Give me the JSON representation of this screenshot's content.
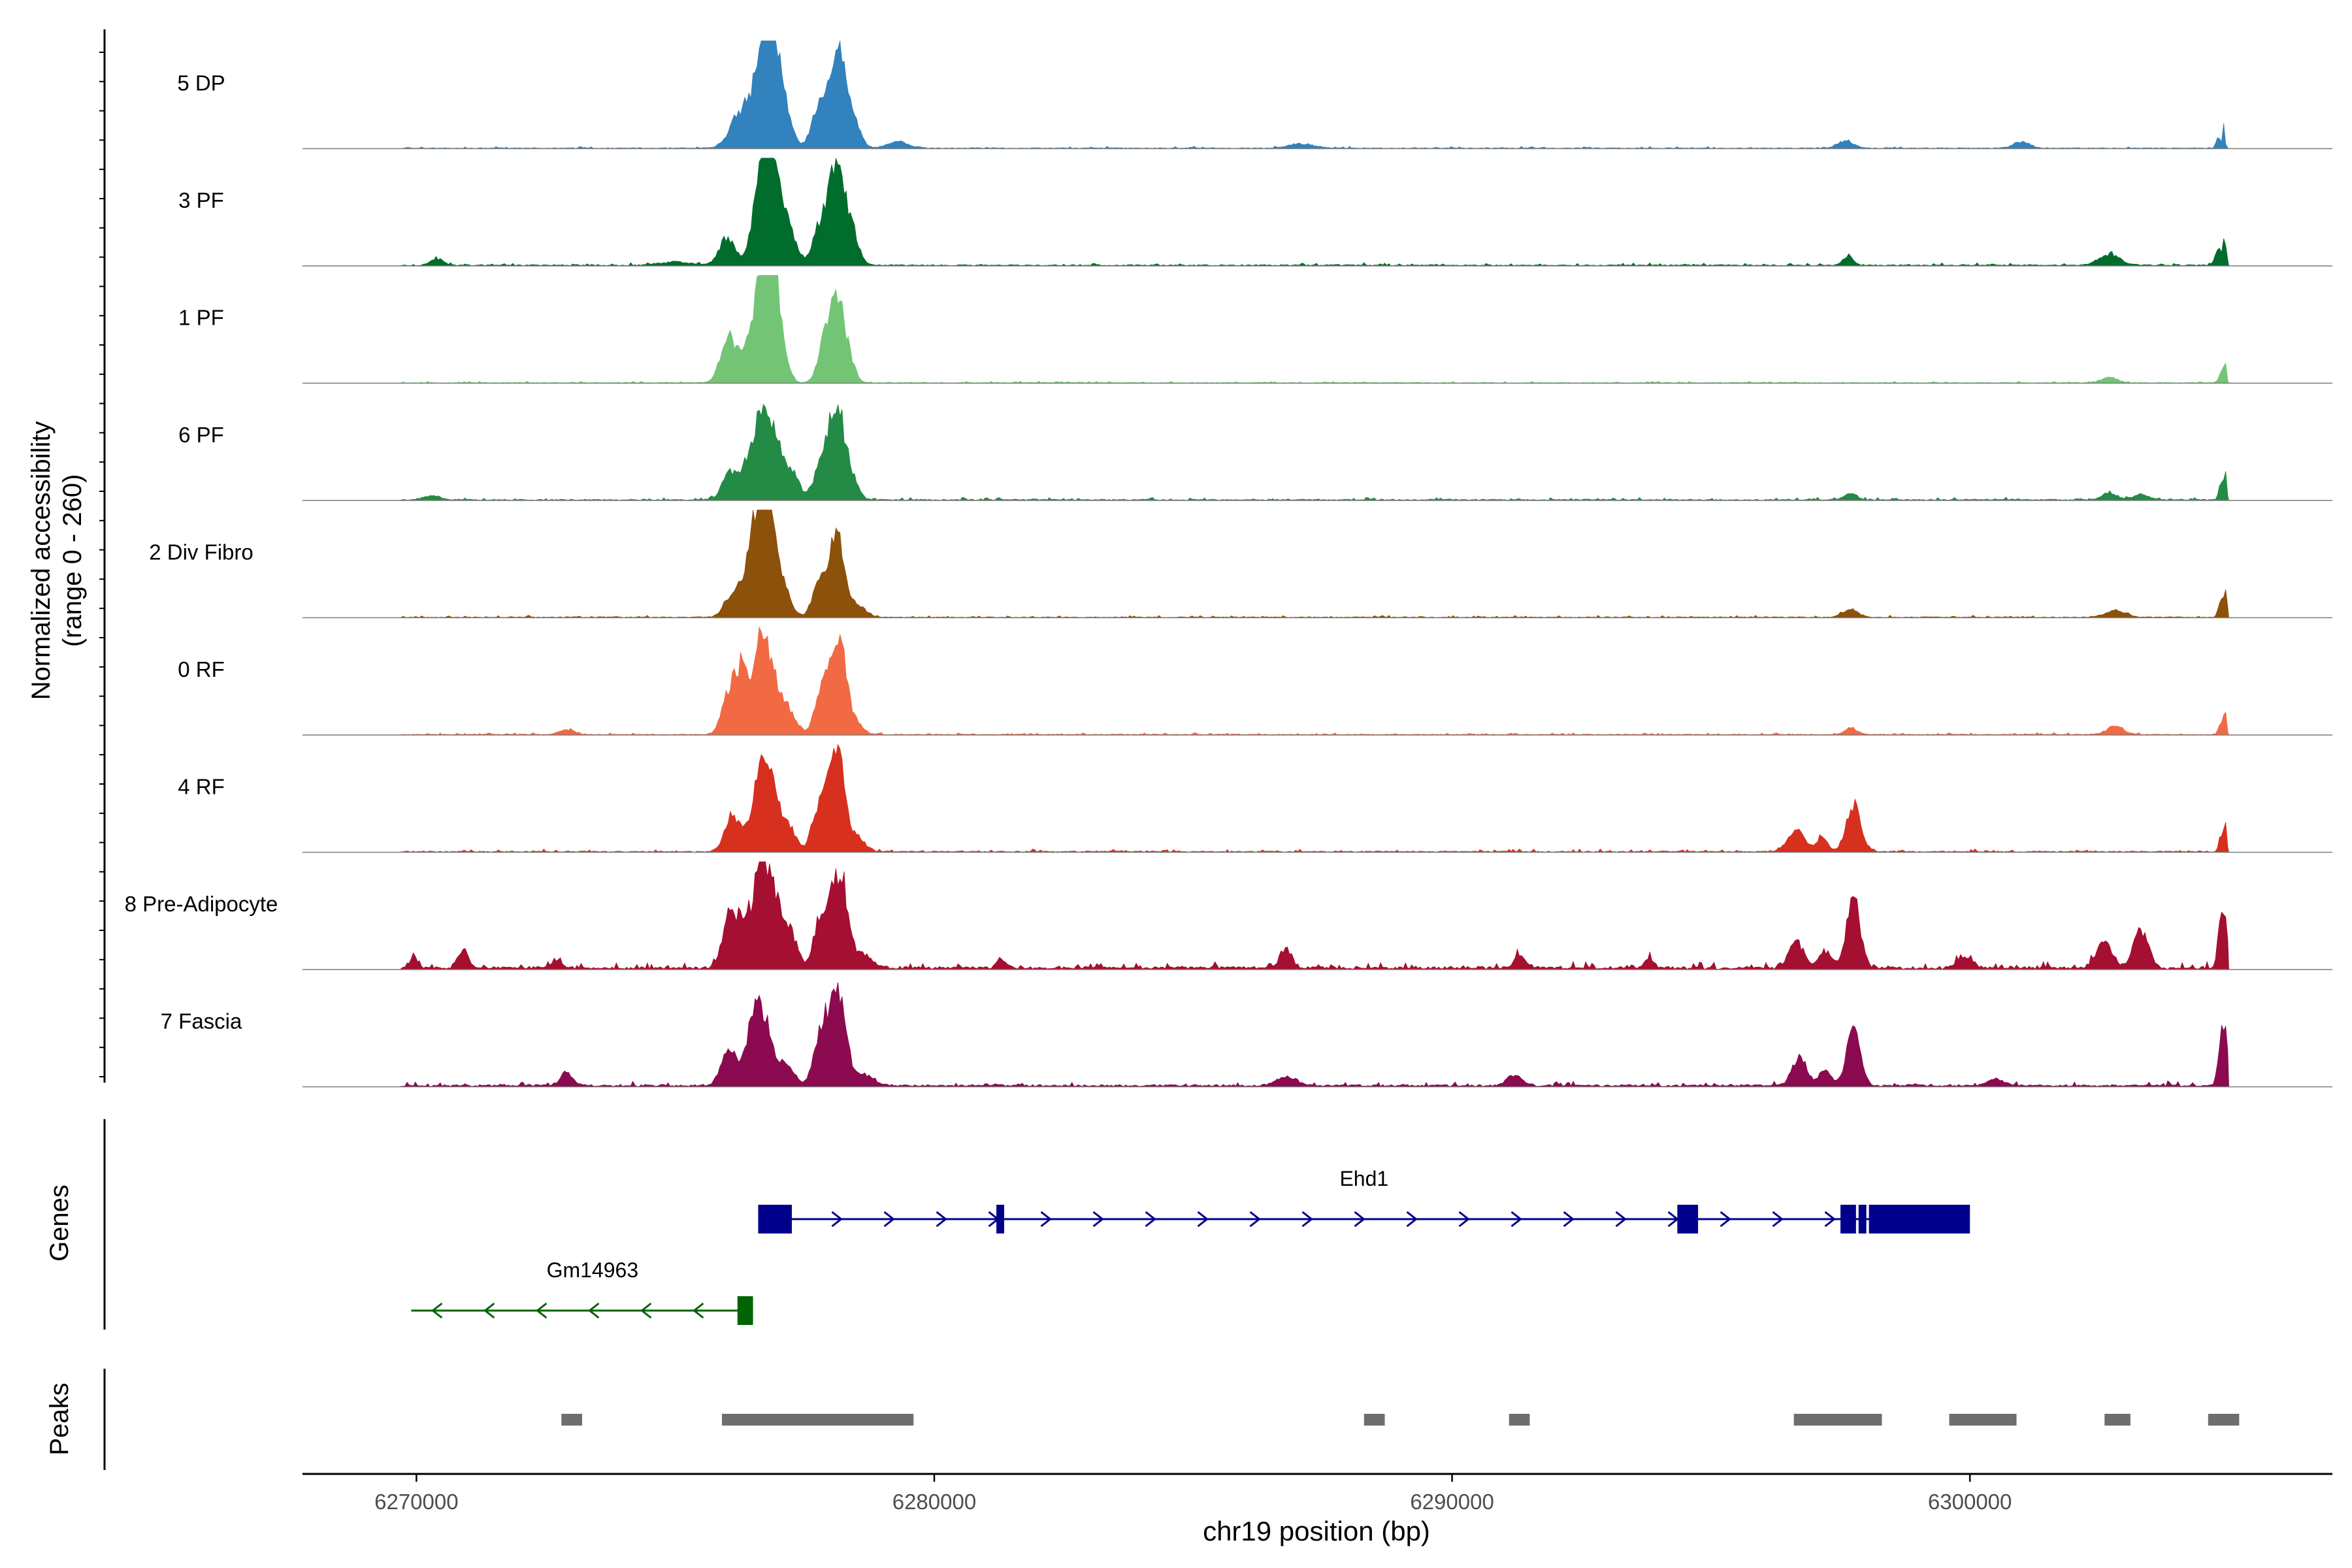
{
  "chart_data": {
    "type": "area",
    "title": "",
    "ylabel_line1": "Normalized accessibility",
    "ylabel_line2": "(range 0 - 260)",
    "xlabel": "chr19 position (bp)",
    "xlim": [
      6267800,
      6307000
    ],
    "xticks": [
      6270000,
      6280000,
      6290000,
      6300000
    ],
    "xtick_labels": [
      "6270000",
      "6280000",
      "6290000",
      "6300000"
    ],
    "ylim": [
      0,
      260
    ],
    "tracks": [
      {
        "name": "5 DP",
        "color": "#3182BD",
        "noise": 0.015,
        "seed": 11,
        "peaks": [
          [
            6276500,
            4,
            200
          ],
          [
            6276650,
            50,
            170
          ],
          [
            6276850,
            85,
            170
          ],
          [
            6276250,
            30,
            200
          ],
          [
            6277100,
            25,
            160
          ],
          [
            6277700,
            15,
            120
          ],
          [
            6277950,
            45,
            180
          ],
          [
            6278150,
            70,
            120
          ],
          [
            6278400,
            35,
            140
          ],
          [
            6279300,
            6,
            200
          ],
          [
            6287100,
            4,
            250
          ],
          [
            6297600,
            7,
            150
          ],
          [
            6301000,
            6,
            150
          ],
          [
            6304800,
            12,
            40
          ],
          [
            6304900,
            25,
            20
          ]
        ]
      },
      {
        "name": "3 PF",
        "color": "#006D2C",
        "noise": 0.02,
        "seed": 23,
        "peaks": [
          [
            6270400,
            6,
            120
          ],
          [
            6276000,
            25,
            150
          ],
          [
            6276650,
            60,
            170
          ],
          [
            6276850,
            90,
            170
          ],
          [
            6277200,
            30,
            150
          ],
          [
            6277700,
            18,
            100
          ],
          [
            6277950,
            50,
            150
          ],
          [
            6278150,
            70,
            130
          ],
          [
            6278400,
            30,
            140
          ],
          [
            6275000,
            3,
            300
          ],
          [
            6297650,
            8,
            100
          ],
          [
            6302700,
            10,
            200
          ],
          [
            6304800,
            15,
            60
          ],
          [
            6304920,
            25,
            30
          ]
        ]
      },
      {
        "name": "1 PF",
        "color": "#74C476",
        "noise": 0.012,
        "seed": 37,
        "peaks": [
          [
            6276000,
            30,
            130
          ],
          [
            6276650,
            75,
            170
          ],
          [
            6276850,
            90,
            140
          ],
          [
            6276250,
            20,
            250
          ],
          [
            6277050,
            20,
            130
          ],
          [
            6277950,
            50,
            150
          ],
          [
            6278150,
            55,
            120
          ],
          [
            6278350,
            20,
            120
          ],
          [
            6302700,
            5,
            150
          ],
          [
            6304850,
            10,
            40
          ],
          [
            6304930,
            20,
            25
          ]
        ]
      },
      {
        "name": "6 PF",
        "color": "#238B45",
        "noise": 0.02,
        "seed": 41,
        "peaks": [
          [
            6270300,
            4,
            150
          ],
          [
            6276050,
            25,
            140
          ],
          [
            6276450,
            35,
            160
          ],
          [
            6276700,
            65,
            150
          ],
          [
            6276950,
            45,
            160
          ],
          [
            6277300,
            20,
            120
          ],
          [
            6277750,
            15,
            120
          ],
          [
            6277950,
            45,
            150
          ],
          [
            6278150,
            65,
            130
          ],
          [
            6278400,
            20,
            130
          ],
          [
            6297700,
            6,
            120
          ],
          [
            6302700,
            6,
            150
          ],
          [
            6303300,
            5,
            150
          ],
          [
            6304850,
            15,
            40
          ],
          [
            6304930,
            25,
            25
          ]
        ]
      },
      {
        "name": "2 Div Fibro",
        "color": "#8C510A",
        "noise": 0.015,
        "seed": 53,
        "peaks": [
          [
            6276100,
            20,
            150
          ],
          [
            6276550,
            80,
            180
          ],
          [
            6276800,
            75,
            160
          ],
          [
            6277100,
            20,
            150
          ],
          [
            6277700,
            15,
            100
          ],
          [
            6277950,
            40,
            160
          ],
          [
            6278150,
            55,
            120
          ],
          [
            6278500,
            12,
            160
          ],
          [
            6297700,
            7,
            150
          ],
          [
            6302800,
            6,
            200
          ],
          [
            6304850,
            15,
            50
          ],
          [
            6304940,
            25,
            25
          ]
        ]
      },
      {
        "name": "0 RF",
        "color": "#F16A43",
        "noise": 0.015,
        "seed": 67,
        "peaks": [
          [
            6276050,
            40,
            140
          ],
          [
            6276300,
            55,
            120
          ],
          [
            6276650,
            90,
            140
          ],
          [
            6276900,
            40,
            150
          ],
          [
            6277200,
            20,
            150
          ],
          [
            6277750,
            15,
            100
          ],
          [
            6277950,
            50,
            160
          ],
          [
            6278200,
            65,
            120
          ],
          [
            6278450,
            12,
            150
          ],
          [
            6272900,
            4,
            150
          ],
          [
            6297700,
            6,
            120
          ],
          [
            6302800,
            8,
            150
          ],
          [
            6304850,
            12,
            40
          ],
          [
            6304930,
            22,
            25
          ]
        ]
      },
      {
        "name": "4 RF",
        "color": "#D7301F",
        "noise": 0.02,
        "seed": 71,
        "peaks": [
          [
            6276100,
            35,
            140
          ],
          [
            6276650,
            75,
            170
          ],
          [
            6276900,
            35,
            150
          ],
          [
            6277200,
            20,
            140
          ],
          [
            6277700,
            25,
            100
          ],
          [
            6277950,
            50,
            150
          ],
          [
            6278150,
            75,
            130
          ],
          [
            6278500,
            15,
            150
          ],
          [
            6296650,
            22,
            160
          ],
          [
            6297150,
            15,
            100
          ],
          [
            6297750,
            42,
            140
          ],
          [
            6304850,
            15,
            40
          ],
          [
            6304930,
            25,
            25
          ]
        ]
      },
      {
        "name": "8 Pre-Adipocyte",
        "color": "#A50F31",
        "noise": 0.05,
        "seed": 83,
        "peaks": [
          [
            6269950,
            12,
            60
          ],
          [
            6270900,
            18,
            90
          ],
          [
            6272700,
            8,
            80
          ],
          [
            6276050,
            55,
            130
          ],
          [
            6276350,
            45,
            120
          ],
          [
            6276650,
            100,
            120
          ],
          [
            6276900,
            60,
            150
          ],
          [
            6277200,
            30,
            150
          ],
          [
            6277750,
            25,
            100
          ],
          [
            6277950,
            45,
            160
          ],
          [
            6278200,
            75,
            130
          ],
          [
            6278600,
            12,
            200
          ],
          [
            6281300,
            8,
            80
          ],
          [
            6286800,
            18,
            100
          ],
          [
            6291300,
            12,
            100
          ],
          [
            6293800,
            10,
            80
          ],
          [
            6296650,
            25,
            140
          ],
          [
            6297200,
            15,
            120
          ],
          [
            6297750,
            65,
            130
          ],
          [
            6299900,
            10,
            150
          ],
          [
            6302600,
            25,
            150
          ],
          [
            6303300,
            35,
            140
          ],
          [
            6304850,
            45,
            60
          ],
          [
            6304940,
            35,
            40
          ]
        ]
      },
      {
        "name": "7 Fascia",
        "color": "#8B0A50",
        "noise": 0.035,
        "seed": 97,
        "peaks": [
          [
            6272900,
            12,
            120
          ],
          [
            6276050,
            35,
            150
          ],
          [
            6276500,
            55,
            140
          ],
          [
            6276750,
            50,
            150
          ],
          [
            6277150,
            20,
            140
          ],
          [
            6277750,
            20,
            120
          ],
          [
            6277950,
            55,
            160
          ],
          [
            6278200,
            65,
            130
          ],
          [
            6278650,
            10,
            200
          ],
          [
            6286800,
            8,
            200
          ],
          [
            6291200,
            10,
            150
          ],
          [
            6296700,
            25,
            140
          ],
          [
            6297200,
            15,
            120
          ],
          [
            6297750,
            55,
            130
          ],
          [
            6300500,
            6,
            150
          ],
          [
            6304850,
            45,
            60
          ],
          [
            6304940,
            40,
            40
          ]
        ]
      }
    ],
    "genes_label": "Genes",
    "genes": [
      {
        "name": "Ehd1",
        "strand": "+",
        "color": "#00008B",
        "start": 6276600,
        "end": 6300000,
        "exons": [
          [
            6276600,
            6277250
          ],
          [
            6281200,
            6281350
          ],
          [
            6294350,
            6294750
          ],
          [
            6297500,
            6297800
          ],
          [
            6297850,
            6298000
          ],
          [
            6298050,
            6300000
          ]
        ]
      },
      {
        "name": "Gm14963",
        "strand": "-",
        "color": "#006400",
        "start": 6269900,
        "end": 6276500,
        "exons": [
          [
            6276200,
            6276500
          ]
        ]
      }
    ],
    "peaks_label": "Peaks",
    "peak_regions": [
      [
        6272800,
        6273200
      ],
      [
        6275900,
        6279600
      ],
      [
        6288300,
        6288700
      ],
      [
        6291100,
        6291500
      ],
      [
        6296600,
        6298300
      ],
      [
        6299600,
        6300900
      ],
      [
        6302600,
        6303100
      ],
      [
        6304600,
        6305200
      ]
    ],
    "peak_color": "#6E6E6E"
  }
}
